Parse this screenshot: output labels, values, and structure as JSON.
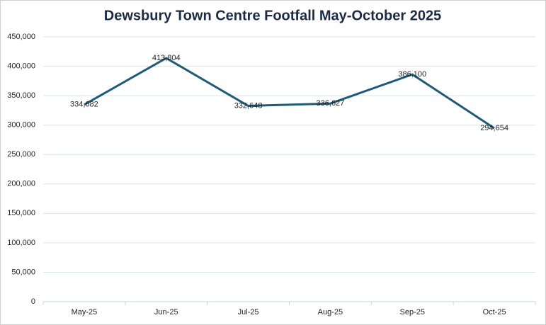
{
  "chart_data": {
    "type": "line",
    "title": "Dewsbury Town Centre Footfall May-October 2025",
    "categories": [
      "May-25",
      "Jun-25",
      "Jul-25",
      "Aug-25",
      "Sep-25",
      "Oct-25"
    ],
    "values": [
      334682,
      413804,
      332648,
      336627,
      386100,
      294654
    ],
    "value_labels": [
      "334,682",
      "413,804",
      "332,648",
      "336,627",
      "386,100",
      "294,654"
    ],
    "color": "#1d5b79",
    "ylim": [
      0,
      450000
    ],
    "yticks": [
      0,
      {
        "value": 50000,
        "label": "50,000"
      },
      {
        "value": 100000,
        "label": "100,000"
      },
      {
        "value": 150000,
        "label": "150,000"
      },
      {
        "value": 200000,
        "label": "200,000"
      },
      {
        "value": 250000,
        "label": "250,000"
      },
      {
        "value": 300000,
        "label": "300,000"
      },
      {
        "value": 350000,
        "label": "350,000"
      },
      {
        "value": 400000,
        "label": "400,000"
      },
      {
        "value": 450000,
        "label": "450,000"
      }
    ],
    "grid": true
  }
}
